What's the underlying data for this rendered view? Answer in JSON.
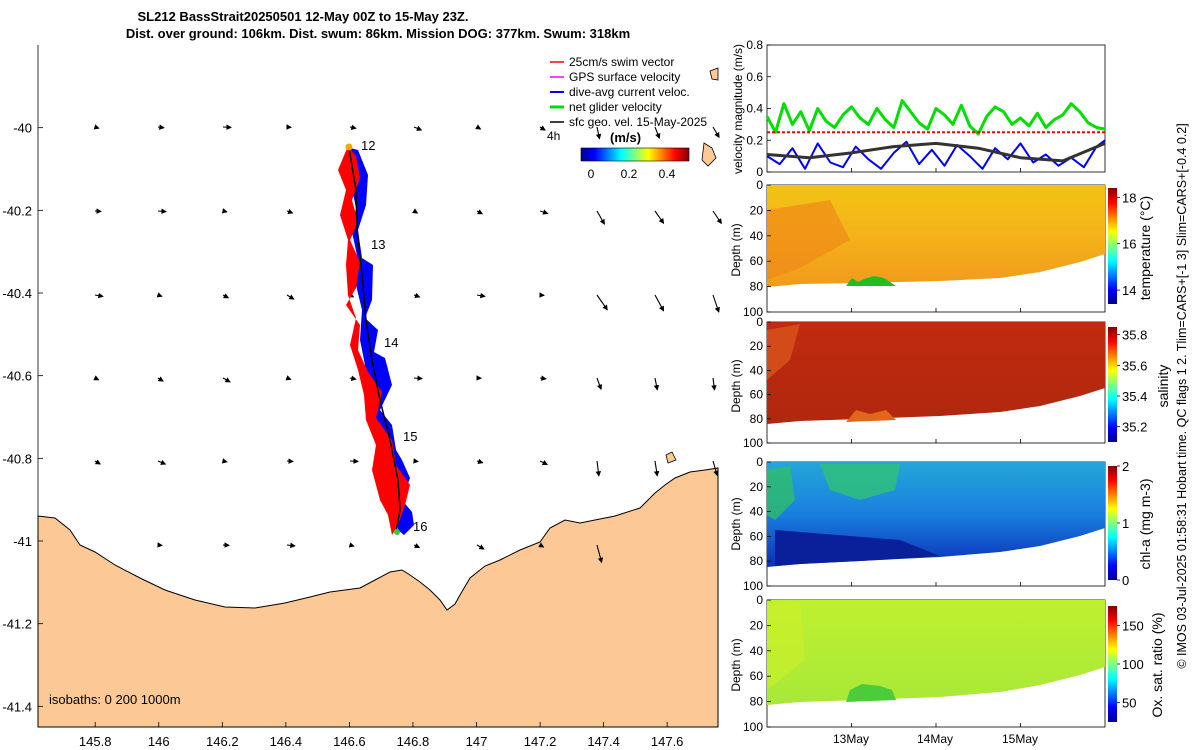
{
  "header": {
    "title_line1": "SL212 BassStrait20250501 12-May 00Z to 15-May 23Z.",
    "title_line2": "Dist. over ground: 106km. Dist. swum: 86km. Mission DOG: 377km. Swum: 318km"
  },
  "map": {
    "xticks": [
      "145.8",
      "146",
      "146.2",
      "146.4",
      "146.6",
      "146.8",
      "147",
      "147.2",
      "147.4",
      "147.6"
    ],
    "xtick_values": [
      145.8,
      146.0,
      146.2,
      146.4,
      146.6,
      146.8,
      147.0,
      147.2,
      147.4,
      147.6
    ],
    "yticks": [
      "-40",
      "-40.2",
      "-40.4",
      "-40.6",
      "-40.8",
      "-41",
      "-41.2",
      "-41.4"
    ],
    "ytick_values": [
      -40.0,
      -40.2,
      -40.4,
      -40.6,
      -40.8,
      -41.0,
      -41.2,
      -41.4
    ],
    "xlim": [
      145.62,
      147.76
    ],
    "ylim": [
      -41.45,
      -39.8
    ],
    "day_labels": [
      "12",
      "13",
      "14",
      "15",
      "16"
    ],
    "isobaths_label": "isobaths: 0   200  1000m",
    "legend": [
      {
        "label": "25cm/s swim vector",
        "color": "#ff0000"
      },
      {
        "label": "GPS surface velocity",
        "color": "#ff00ff"
      },
      {
        "label": "dive-avg current veloc.",
        "color": "#0000ff"
      },
      {
        "label": "net glider velocity",
        "color": "#00dd00"
      },
      {
        "label": "sfc geo. vel. 15-May-2025",
        "color": "#000000"
      }
    ],
    "interval_label": "4h",
    "colorbar": {
      "label": "(m/s)",
      "ticks": [
        "0",
        "0.2",
        "0.4"
      ],
      "range": [
        0,
        0.5
      ]
    },
    "colors": {
      "land": "#fcc996",
      "track_red": "#ff0000",
      "track_blue": "#0000ff"
    }
  },
  "right_label": "© IMOS 03-Jul-2025 01:58:31 Hobart time. QC flags 1  2. Tlim=CARS+[-1 3] Slim=CARS+[-0.4 0.2]",
  "panels": {
    "velocity": {
      "ylabel": "velocity magnitude (m/s)",
      "yticks": [
        "0",
        "0.2",
        "0.4",
        "0.6",
        "0.8"
      ],
      "ylim": [
        0,
        0.8
      ]
    },
    "temperature": {
      "ylabel": "Depth (m)",
      "clabel": "temperature (°C)",
      "cticks": [
        "14",
        "16",
        "18"
      ],
      "crange": [
        13.4,
        18.4
      ]
    },
    "salinity": {
      "ylabel": "Depth (m)",
      "clabel": "salinity",
      "cticks": [
        "35.2",
        "35.4",
        "35.6",
        "35.8"
      ],
      "crange": [
        35.1,
        35.85
      ]
    },
    "chla": {
      "ylabel": "Depth (m)",
      "clabel": "chl-a (mg m-3)",
      "cticks": [
        "0",
        "1",
        "2"
      ],
      "crange": [
        0,
        2
      ]
    },
    "oxygen": {
      "ylabel": "Depth (m)",
      "clabel": "Ox. sat. ratio (%)",
      "cticks": [
        "50",
        "100",
        "150"
      ],
      "crange": [
        25,
        175
      ]
    },
    "depth_ticks": [
      "0",
      "20",
      "40",
      "60",
      "80",
      "100"
    ],
    "time_ticks": [
      "13May",
      "14May",
      "15May"
    ]
  },
  "chart_data": [
    {
      "type": "line",
      "title": "velocity magnitude",
      "x_unit": "days since 12-May 00Z",
      "xlim": [
        0,
        4
      ],
      "ylim": [
        0,
        0.8
      ],
      "ylabel": "velocity magnitude (m/s)",
      "series": [
        {
          "name": "net glider velocity",
          "color": "#00dd00",
          "x": [
            0,
            0.1,
            0.2,
            0.3,
            0.4,
            0.5,
            0.6,
            0.7,
            0.8,
            0.9,
            1.0,
            1.1,
            1.2,
            1.3,
            1.4,
            1.5,
            1.6,
            1.7,
            1.8,
            1.9,
            2.0,
            2.1,
            2.2,
            2.3,
            2.4,
            2.5,
            2.6,
            2.7,
            2.8,
            2.9,
            3.0,
            3.1,
            3.2,
            3.3,
            3.4,
            3.5,
            3.6,
            3.7,
            3.8,
            3.9,
            4.0
          ],
          "values": [
            0.35,
            0.25,
            0.43,
            0.3,
            0.38,
            0.26,
            0.4,
            0.32,
            0.28,
            0.36,
            0.41,
            0.34,
            0.3,
            0.4,
            0.33,
            0.28,
            0.45,
            0.38,
            0.31,
            0.27,
            0.4,
            0.36,
            0.3,
            0.42,
            0.29,
            0.24,
            0.35,
            0.41,
            0.38,
            0.3,
            0.34,
            0.29,
            0.37,
            0.28,
            0.33,
            0.36,
            0.43,
            0.38,
            0.31,
            0.28,
            0.27
          ]
        },
        {
          "name": "25cm/s swim vector",
          "color": "#ff0000",
          "x": [
            0,
            4
          ],
          "values": [
            0.25,
            0.25
          ]
        },
        {
          "name": "dive-avg current veloc.",
          "color": "#0000ff",
          "x": [
            0,
            0.15,
            0.3,
            0.45,
            0.6,
            0.75,
            0.9,
            1.05,
            1.2,
            1.35,
            1.5,
            1.65,
            1.8,
            1.95,
            2.1,
            2.25,
            2.4,
            2.55,
            2.7,
            2.85,
            3.0,
            3.15,
            3.3,
            3.45,
            3.6,
            3.75,
            3.9,
            4.0
          ],
          "values": [
            0.1,
            0.05,
            0.15,
            0.02,
            0.18,
            0.06,
            0.03,
            0.16,
            0.08,
            0.02,
            0.12,
            0.19,
            0.05,
            0.14,
            0.04,
            0.17,
            0.1,
            0.02,
            0.15,
            0.08,
            0.18,
            0.06,
            0.11,
            0.04,
            0.09,
            0.03,
            0.16,
            0.2
          ]
        },
        {
          "name": "sfc geo. vel.",
          "color": "#333333",
          "x": [
            0,
            0.5,
            1.0,
            1.5,
            2.0,
            2.5,
            3.0,
            3.5,
            4.0
          ],
          "values": [
            0.11,
            0.09,
            0.12,
            0.16,
            0.18,
            0.15,
            0.09,
            0.07,
            0.18
          ]
        }
      ]
    },
    {
      "type": "heatmap",
      "title": "temperature (°C)",
      "x": "days since 12-May 00Z",
      "xlim": [
        0,
        4
      ],
      "ylim_depth": [
        100,
        0
      ],
      "bottom_depth": {
        "x": [
          0,
          1,
          2,
          3,
          3.5,
          4
        ],
        "depth": [
          82,
          80,
          80,
          78,
          72,
          58
        ]
      },
      "value_range": [
        13.4,
        18.4
      ],
      "typical_value": 17.3
    },
    {
      "type": "heatmap",
      "title": "salinity",
      "x": "days since 12-May 00Z",
      "xlim": [
        0,
        4
      ],
      "ylim_depth": [
        100,
        0
      ],
      "value_range": [
        35.1,
        35.85
      ],
      "typical_value": 35.82
    },
    {
      "type": "heatmap",
      "title": "chl-a (mg m-3)",
      "x": "days since 12-May 00Z",
      "xlim": [
        0,
        4
      ],
      "ylim_depth": [
        100,
        0
      ],
      "value_range": [
        0,
        2
      ],
      "typical_value": 0.7
    },
    {
      "type": "heatmap",
      "title": "Ox. sat. ratio (%)",
      "x": "days since 12-May 00Z",
      "xlim": [
        0,
        4
      ],
      "ylim_depth": [
        100,
        0
      ],
      "value_range": [
        25,
        175
      ],
      "typical_value": 110
    }
  ]
}
